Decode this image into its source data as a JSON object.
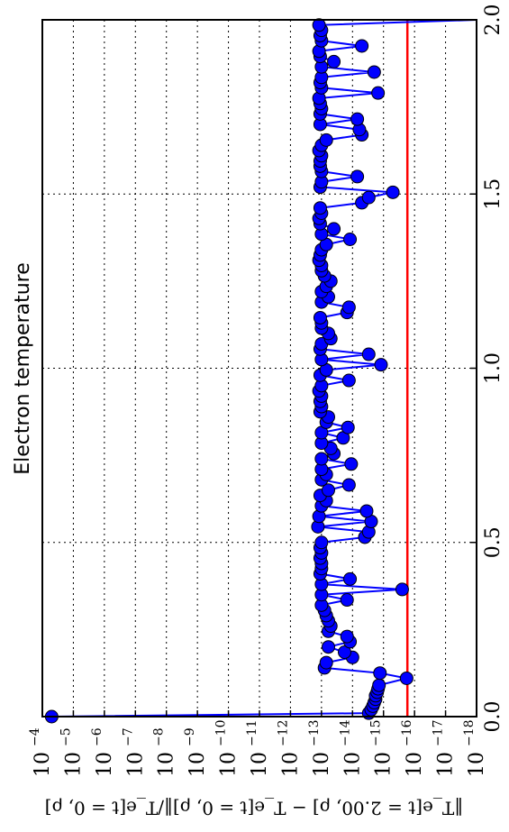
{
  "chart_data": {
    "type": "line",
    "title": "Electron temperature",
    "ylabel": "‖T_e[t = 2.00, ρ] − T_e[t = 0, ρ]‖/T_e[t = 0, ρ]",
    "xlabel": "",
    "xlim": [
      0.0,
      2.0
    ],
    "ylim": [
      1e-18,
      0.0001
    ],
    "y_scale": "log",
    "grid": true,
    "x_tick_labels": [
      "0.0",
      "0.5",
      "1.0",
      "1.5",
      "2.0"
    ],
    "x_ticks": [
      0.0,
      0.5,
      1.0,
      1.5,
      2.0
    ],
    "y_tick_exponents": [
      "-4",
      "-5",
      "-6",
      "-7",
      "-8",
      "-9",
      "-10",
      "-11",
      "-12",
      "-13",
      "-14",
      "-15",
      "-16",
      "-17",
      "-18"
    ],
    "y_tick_base": "10",
    "reference_line": {
      "y": 1.7e-16,
      "color": "#ff0000"
    },
    "series": [
      {
        "color": "#0000ff",
        "x": [
          0.0,
          0.01,
          0.02,
          0.03,
          0.04,
          0.05,
          0.06,
          0.07,
          0.08,
          0.09,
          0.11,
          0.125,
          0.14,
          0.155,
          0.17,
          0.185,
          0.2,
          0.215,
          0.23,
          0.245,
          0.26,
          0.275,
          0.29,
          0.305,
          0.32,
          0.335,
          0.35,
          0.365,
          0.38,
          0.395,
          0.41,
          0.425,
          0.44,
          0.455,
          0.47,
          0.485,
          0.5,
          0.515,
          0.53,
          0.545,
          0.56,
          0.575,
          0.59,
          0.605,
          0.62,
          0.635,
          0.65,
          0.665,
          0.68,
          0.695,
          0.71,
          0.725,
          0.74,
          0.755,
          0.77,
          0.785,
          0.8,
          0.815,
          0.83,
          0.845,
          0.86,
          0.875,
          0.89,
          0.905,
          0.92,
          0.935,
          0.95,
          0.965,
          0.98,
          0.995,
          1.01,
          1.025,
          1.04,
          1.055,
          1.07,
          1.085,
          1.1,
          1.115,
          1.13,
          1.145,
          1.16,
          1.175,
          1.19,
          1.205,
          1.22,
          1.235,
          1.25,
          1.265,
          1.28,
          1.295,
          1.31,
          1.325,
          1.34,
          1.355,
          1.37,
          1.385,
          1.4,
          1.415,
          1.43,
          1.445,
          1.46,
          1.475,
          1.49,
          1.505,
          1.52,
          1.535,
          1.55,
          1.565,
          1.58,
          1.595,
          1.61,
          1.625,
          1.64,
          1.655,
          1.67,
          1.685,
          1.7,
          1.715,
          1.73,
          1.745,
          1.76,
          1.775,
          1.79,
          1.805,
          1.82,
          1.835,
          1.85,
          1.865,
          1.88,
          1.895,
          1.91,
          1.925,
          1.94,
          1.955,
          1.97,
          1.985,
          2.0
        ],
        "values": [
          5e-05,
          3e-15,
          2.5e-15,
          2.2e-15,
          2e-15,
          1.8e-15,
          1.8e-15,
          1.6e-15,
          1.5e-15,
          1.4e-15,
          1.8e-16,
          1.3e-15,
          8e-14,
          7e-14,
          1e-14,
          1.8e-14,
          6e-14,
          1.2e-14,
          1.5e-14,
          6e-14,
          5e-14,
          6e-14,
          7e-14,
          8e-14,
          1e-13,
          1.5e-14,
          1e-13,
          2.5e-16,
          1e-13,
          1.2e-14,
          1.1e-13,
          1e-13,
          1e-13,
          1.1e-13,
          1e-13,
          1.1e-13,
          1e-13,
          4e-15,
          3e-15,
          1.3e-13,
          2.5e-15,
          1.2e-13,
          3.5e-15,
          1e-13,
          7e-14,
          1.1e-13,
          6e-14,
          1.3e-14,
          1e-13,
          7e-14,
          1e-13,
          1.1e-14,
          1e-13,
          4e-14,
          5e-14,
          1e-13,
          2e-14,
          1e-13,
          1.4e-14,
          7e-14,
          6e-14,
          1.1e-13,
          1e-13,
          1.1e-13,
          1e-13,
          1.2e-13,
          1e-13,
          1.3e-14,
          1.1e-13,
          7e-14,
          1.2e-15,
          1e-13,
          3e-15,
          1.1e-13,
          1e-13,
          5e-14,
          6e-14,
          1e-13,
          1e-13,
          1.1e-13,
          1.5e-14,
          1.3e-14,
          1e-13,
          6e-14,
          1e-13,
          7e-14,
          5e-14,
          8e-14,
          1e-13,
          1e-13,
          1.2e-13,
          1.1e-13,
          1e-13,
          7e-14,
          1.2e-14,
          1e-13,
          4e-14,
          1.1e-13,
          1.2e-13,
          1e-13,
          1.1e-13,
          5e-15,
          3e-15,
          5e-16,
          1.1e-13,
          1e-13,
          7e-15,
          1e-13,
          1.1e-13,
          1.1e-13,
          1e-13,
          1.2e-13,
          1e-13,
          7e-14,
          5e-15,
          6e-15,
          1.1e-13,
          7e-15,
          1.1e-13,
          1e-13,
          1.1e-13,
          1.2e-13,
          1.5e-15,
          1e-13,
          1.1e-13,
          1e-13,
          2e-15,
          1e-13,
          4e-14,
          1.1e-13,
          1.2e-13,
          5e-15,
          1e-13,
          1.1e-13,
          1e-13,
          1.2e-13,
          1e-18
        ]
      }
    ]
  }
}
